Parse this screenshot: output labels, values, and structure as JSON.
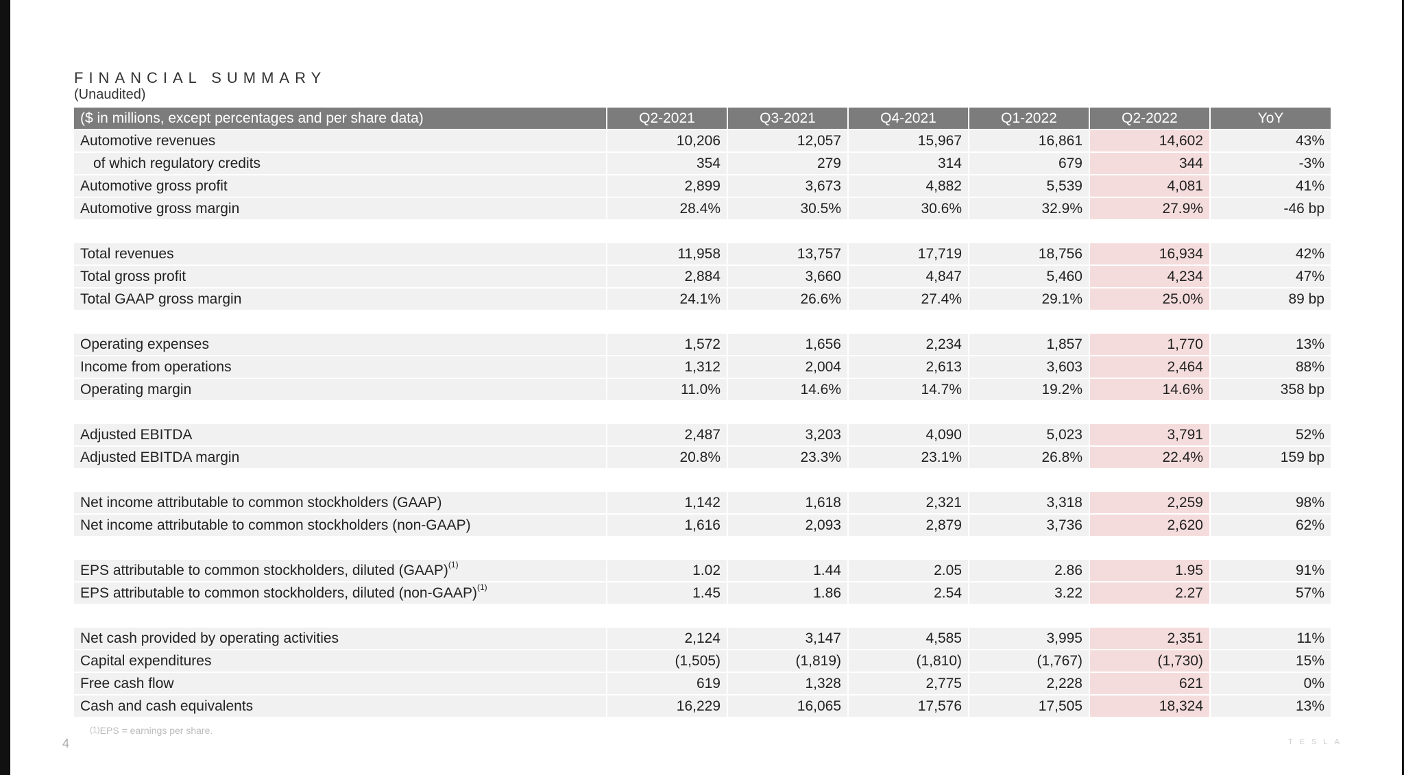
{
  "title": "FINANCIAL SUMMARY",
  "subtitle": "(Unaudited)",
  "table": {
    "header": [
      "($ in millions, except percentages and per share data)",
      "Q2-2021",
      "Q3-2021",
      "Q4-2021",
      "Q1-2022",
      "Q2-2022",
      "YoY"
    ],
    "groups": [
      [
        {
          "label": "Automotive revenues",
          "values": [
            "10,206",
            "12,057",
            "15,967",
            "16,861",
            "14,602",
            "43%"
          ]
        },
        {
          "label": "of which regulatory credits",
          "indent": true,
          "values": [
            "354",
            "279",
            "314",
            "679",
            "344",
            "-3%"
          ]
        },
        {
          "label": "Automotive gross profit",
          "values": [
            "2,899",
            "3,673",
            "4,882",
            "5,539",
            "4,081",
            "41%"
          ]
        },
        {
          "label": "Automotive gross margin",
          "values": [
            "28.4%",
            "30.5%",
            "30.6%",
            "32.9%",
            "27.9%",
            "-46 bp"
          ]
        }
      ],
      [
        {
          "label": "Total revenues",
          "values": [
            "11,958",
            "13,757",
            "17,719",
            "18,756",
            "16,934",
            "42%"
          ]
        },
        {
          "label": "Total gross profit",
          "values": [
            "2,884",
            "3,660",
            "4,847",
            "5,460",
            "4,234",
            "47%"
          ]
        },
        {
          "label": "Total GAAP gross margin",
          "values": [
            "24.1%",
            "26.6%",
            "27.4%",
            "29.1%",
            "25.0%",
            "89 bp"
          ]
        }
      ],
      [
        {
          "label": "Operating expenses",
          "values": [
            "1,572",
            "1,656",
            "2,234",
            "1,857",
            "1,770",
            "13%"
          ]
        },
        {
          "label": "Income from operations",
          "values": [
            "1,312",
            "2,004",
            "2,613",
            "3,603",
            "2,464",
            "88%"
          ]
        },
        {
          "label": "Operating margin",
          "values": [
            "11.0%",
            "14.6%",
            "14.7%",
            "19.2%",
            "14.6%",
            "358 bp"
          ]
        }
      ],
      [
        {
          "label": "Adjusted EBITDA",
          "values": [
            "2,487",
            "3,203",
            "4,090",
            "5,023",
            "3,791",
            "52%"
          ]
        },
        {
          "label": "Adjusted EBITDA margin",
          "values": [
            "20.8%",
            "23.3%",
            "23.1%",
            "26.8%",
            "22.4%",
            "159 bp"
          ]
        }
      ],
      [
        {
          "label": "Net income attributable to common stockholders (GAAP)",
          "values": [
            "1,142",
            "1,618",
            "2,321",
            "3,318",
            "2,259",
            "98%"
          ]
        },
        {
          "label": "Net income attributable to common stockholders (non-GAAP)",
          "values": [
            "1,616",
            "2,093",
            "2,879",
            "3,736",
            "2,620",
            "62%"
          ]
        }
      ],
      [
        {
          "label": "EPS attributable to common stockholders, diluted (GAAP)",
          "sup": "(1)",
          "values": [
            "1.02",
            "1.44",
            "2.05",
            "2.86",
            "1.95",
            "91%"
          ]
        },
        {
          "label": "EPS attributable to common stockholders, diluted (non-GAAP)",
          "sup": "(1)",
          "values": [
            "1.45",
            "1.86",
            "2.54",
            "3.22",
            "2.27",
            "57%"
          ]
        }
      ],
      [
        {
          "label": "Net cash provided by operating activities",
          "values": [
            "2,124",
            "3,147",
            "4,585",
            "3,995",
            "2,351",
            "11%"
          ]
        },
        {
          "label": "Capital expenditures",
          "values": [
            "(1,505)",
            "(1,819)",
            "(1,810)",
            "(1,767)",
            "(1,730)",
            "15%"
          ]
        },
        {
          "label": "Free cash flow",
          "values": [
            "619",
            "1,328",
            "2,775",
            "2,228",
            "621",
            "0%"
          ]
        },
        {
          "label": "Cash and cash equivalents",
          "values": [
            "16,229",
            "16,065",
            "17,576",
            "17,505",
            "18,324",
            "13%"
          ]
        }
      ]
    ],
    "highlight_column_index": 4,
    "highlight_color": "#f5dcdc",
    "header_color": "#7c7c7c",
    "row_color": "#f1f1f1"
  },
  "footnote": {
    "marker": "(1)",
    "text": "EPS = earnings per share."
  },
  "page_number": "4",
  "brand": "TESLA"
}
